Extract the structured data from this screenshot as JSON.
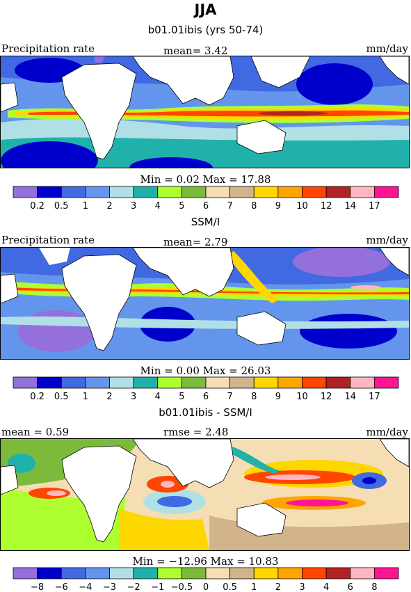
{
  "page": {
    "title": "JJA"
  },
  "panels": [
    {
      "title": "b01.01ibis (yrs 50-74)",
      "left_label": "Precipitation rate",
      "center_label": "mean=   3.42",
      "right_label": "mm/day",
      "minmax": "Min =   0.02 Max =  17.88",
      "palette": "abs"
    },
    {
      "title": "SSM/I",
      "left_label": "Precipitation rate",
      "center_label": "mean=   2.79",
      "right_label": "mm/day",
      "minmax": "Min =   0.00 Max =  26.03",
      "palette": "abs"
    },
    {
      "title": "b01.01ibis - SSM/I",
      "left_label": "mean =    0.59",
      "center_label": "rmse =    2.48",
      "right_label": "mm/day",
      "minmax": "Min = −12.96 Max =  10.83",
      "palette": "diff"
    }
  ],
  "chart_data": [
    {
      "type": "heatmap",
      "title": "b01.01ibis (yrs 50-74)",
      "variable": "Precipitation rate",
      "units": "mm/day",
      "mean": 3.42,
      "min": 0.02,
      "max": 17.88,
      "colorbar_levels": [
        "0.2",
        "0.5",
        "1",
        "2",
        "3",
        "4",
        "5",
        "6",
        "7",
        "8",
        "9",
        "10",
        "12",
        "14",
        "17"
      ],
      "colorbar_colors": [
        "#9370db",
        "#0000cd",
        "#4169e1",
        "#6495ed",
        "#b0e0e6",
        "#20b2aa",
        "#adff2f",
        "#7cba3a",
        "#f5deb3",
        "#d2b48c",
        "#ffd700",
        "#ffa500",
        "#ff4500",
        "#b22222",
        "#ffb6c1",
        "#ff1493"
      ]
    },
    {
      "type": "heatmap",
      "title": "SSM/I",
      "variable": "Precipitation rate",
      "units": "mm/day",
      "mean": 2.79,
      "min": 0.0,
      "max": 26.03,
      "colorbar_levels": [
        "0.2",
        "0.5",
        "1",
        "2",
        "3",
        "4",
        "5",
        "6",
        "7",
        "8",
        "9",
        "10",
        "12",
        "14",
        "17"
      ],
      "colorbar_colors": [
        "#9370db",
        "#0000cd",
        "#4169e1",
        "#6495ed",
        "#b0e0e6",
        "#20b2aa",
        "#adff2f",
        "#7cba3a",
        "#f5deb3",
        "#d2b48c",
        "#ffd700",
        "#ffa500",
        "#ff4500",
        "#b22222",
        "#ffb6c1",
        "#ff1493"
      ]
    },
    {
      "type": "heatmap",
      "title": "b01.01ibis - SSM/I",
      "units": "mm/day",
      "mean": 0.59,
      "rmse": 2.48,
      "min": -12.96,
      "max": 10.83,
      "colorbar_levels": [
        "−8",
        "−6",
        "−4",
        "−3",
        "−2",
        "−1",
        "−0.5",
        "0",
        "0.5",
        "1",
        "2",
        "3",
        "4",
        "6",
        "8"
      ],
      "colorbar_colors": [
        "#9370db",
        "#0000cd",
        "#4169e1",
        "#6495ed",
        "#b0e0e6",
        "#20b2aa",
        "#adff2f",
        "#7cba3a",
        "#f5deb3",
        "#d2b48c",
        "#ffd700",
        "#ffa500",
        "#ff4500",
        "#b22222",
        "#ffb6c1",
        "#ff1493"
      ]
    }
  ]
}
